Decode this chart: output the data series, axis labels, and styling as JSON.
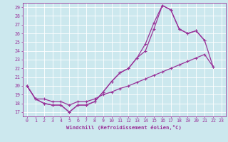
{
  "xlabel": "Windchill (Refroidissement éolien,°C)",
  "bg_color": "#cce8ee",
  "line_color": "#993399",
  "xlim": [
    -0.5,
    23.5
  ],
  "ylim": [
    16.5,
    29.5
  ],
  "yticks": [
    17,
    18,
    19,
    20,
    21,
    22,
    23,
    24,
    25,
    26,
    27,
    28,
    29
  ],
  "xticks": [
    0,
    1,
    2,
    3,
    4,
    5,
    6,
    7,
    8,
    9,
    10,
    11,
    12,
    13,
    14,
    15,
    16,
    17,
    18,
    19,
    20,
    21,
    22,
    23
  ],
  "series1_x": [
    0,
    1,
    2,
    3,
    4,
    5,
    6,
    7,
    8,
    9,
    10,
    11,
    12,
    13,
    14,
    15,
    16,
    17,
    18,
    19,
    20,
    21,
    22,
    23
  ],
  "series1_y": [
    20.0,
    18.5,
    18.0,
    17.8,
    17.8,
    17.0,
    17.8,
    17.8,
    18.2,
    19.3,
    20.5,
    21.5,
    22.0,
    23.2,
    24.0,
    26.5,
    29.2,
    28.7,
    26.5,
    26.0,
    26.3,
    25.2,
    null,
    null
  ],
  "series2_x": [
    0,
    1,
    2,
    3,
    4,
    5,
    6,
    7,
    8,
    9,
    10,
    11,
    12,
    13,
    14,
    15,
    16,
    17,
    18,
    19,
    20,
    21,
    22,
    23
  ],
  "series2_y": [
    20.0,
    18.5,
    18.0,
    17.8,
    17.8,
    17.0,
    17.8,
    17.8,
    18.2,
    19.3,
    20.5,
    21.5,
    22.0,
    23.2,
    24.8,
    27.2,
    29.2,
    28.7,
    26.5,
    26.0,
    26.3,
    25.2,
    22.2,
    null
  ],
  "series3_x": [
    0,
    1,
    2,
    3,
    4,
    5,
    6,
    7,
    8,
    9,
    10,
    11,
    12,
    13,
    14,
    15,
    16,
    17,
    18,
    19,
    20,
    21,
    22,
    23
  ],
  "series3_y": [
    20.0,
    18.5,
    18.5,
    18.2,
    18.2,
    17.8,
    18.2,
    18.2,
    18.5,
    19.0,
    19.3,
    19.7,
    20.0,
    20.4,
    20.8,
    21.2,
    21.6,
    22.0,
    22.4,
    22.8,
    23.2,
    23.6,
    22.2,
    null
  ]
}
